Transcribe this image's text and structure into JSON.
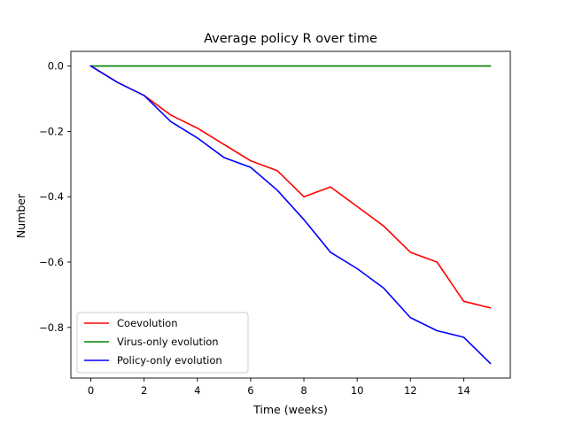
{
  "chart_data": {
    "type": "line",
    "title": "Average policy R over time",
    "xlabel": "Time (weeks)",
    "ylabel": "Number",
    "xlim": [
      -0.75,
      15.75
    ],
    "ylim": [
      -0.955,
      0.045
    ],
    "xticks": [
      0,
      2,
      4,
      6,
      8,
      10,
      12,
      14
    ],
    "yticks": [
      0.0,
      -0.2,
      -0.4,
      -0.6,
      -0.8
    ],
    "ytick_labels": [
      "0.0",
      "−0.2",
      "−0.4",
      "−0.6",
      "−0.8"
    ],
    "grid": false,
    "legend_position": "lower-left",
    "x": [
      0,
      1,
      2,
      3,
      4,
      5,
      6,
      7,
      8,
      9,
      10,
      11,
      12,
      13,
      14,
      15
    ],
    "series": [
      {
        "name": "Coevolution",
        "color": "#ff0000",
        "values": [
          0.0,
          -0.05,
          -0.09,
          -0.15,
          -0.19,
          -0.24,
          -0.29,
          -0.32,
          -0.4,
          -0.37,
          -0.43,
          -0.49,
          -0.57,
          -0.6,
          -0.72,
          -0.74
        ]
      },
      {
        "name": "Virus-only evolution",
        "color": "#008000",
        "values": [
          0,
          0,
          0,
          0,
          0,
          0,
          0,
          0,
          0,
          0,
          0,
          0,
          0,
          0,
          0,
          0
        ]
      },
      {
        "name": "Policy-only evolution",
        "color": "#0000ff",
        "values": [
          0.0,
          -0.05,
          -0.09,
          -0.17,
          -0.22,
          -0.28,
          -0.31,
          -0.38,
          -0.47,
          -0.57,
          -0.62,
          -0.68,
          -0.77,
          -0.81,
          -0.83,
          -0.91
        ]
      }
    ]
  }
}
